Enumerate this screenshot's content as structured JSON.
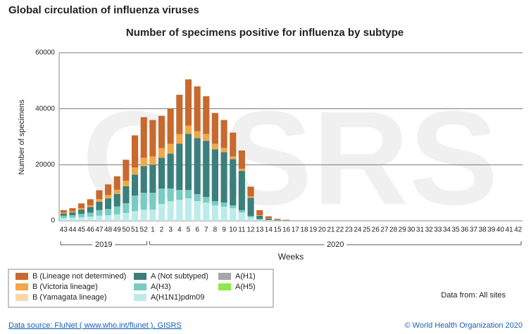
{
  "chart_data": {
    "type": "stacked_bar",
    "page_title": "Global circulation of influenza viruses",
    "title": "Number of specimens positive for influenza by subtype",
    "y_label": "Number of specimens",
    "x_label": "Weeks",
    "watermark": "GISRS",
    "years": [
      "2019",
      "2020"
    ],
    "categories": [
      "43",
      "44",
      "45",
      "46",
      "47",
      "48",
      "49",
      "50",
      "51",
      "52",
      "1",
      "2",
      "3",
      "4",
      "5",
      "6",
      "7",
      "8",
      "9",
      "10",
      "11",
      "12",
      "13",
      "14",
      "15",
      "16",
      "17",
      "18",
      "19",
      "20",
      "21",
      "22",
      "23",
      "24",
      "25",
      "26",
      "27",
      "28",
      "29",
      "30",
      "31",
      "32",
      "33",
      "34",
      "35",
      "36",
      "37",
      "38",
      "39",
      "40",
      "41",
      "42"
    ],
    "ylim": [
      0,
      60000
    ],
    "yticks": [
      0,
      20000,
      40000,
      60000
    ],
    "grid": true,
    "series": [
      {
        "name": "B (Lineage not determined)",
        "color": "#c8692e",
        "values": [
          900,
          1100,
          1700,
          2200,
          3200,
          3800,
          4800,
          7500,
          11500,
          14500,
          13000,
          11500,
          12500,
          14000,
          16500,
          16000,
          13500,
          11000,
          10000,
          8500,
          6500,
          3500,
          1800,
          700,
          300,
          150,
          30,
          30,
          30,
          30,
          30,
          30,
          30,
          30,
          30,
          30,
          30,
          30,
          30,
          30,
          30,
          30,
          30,
          30,
          30,
          30,
          30,
          30,
          30,
          30,
          30,
          30
        ]
      },
      {
        "name": "B (Victoria lineage)",
        "color": "#f0a848",
        "values": [
          300,
          400,
          500,
          600,
          900,
          1200,
          1500,
          2000,
          2500,
          3000,
          3000,
          3500,
          3500,
          3500,
          3000,
          2500,
          2500,
          2000,
          1500,
          1000,
          800,
          500,
          200,
          100,
          50,
          20,
          10,
          10,
          10,
          10,
          10,
          10,
          10,
          10,
          10,
          10,
          10,
          10,
          10,
          10,
          10,
          10,
          10,
          10,
          10,
          10,
          10,
          10,
          10,
          10,
          10,
          10
        ]
      },
      {
        "name": "B (Yamagata lineage)",
        "color": "#f8d8a8",
        "values": [
          0,
          0,
          0,
          0,
          0,
          0,
          0,
          0,
          0,
          0,
          0,
          0,
          0,
          0,
          0,
          0,
          0,
          0,
          0,
          0,
          0,
          0,
          0,
          0,
          0,
          0,
          0,
          0,
          0,
          0,
          0,
          0,
          0,
          0,
          0,
          0,
          0,
          0,
          0,
          0,
          0,
          0,
          0,
          0,
          0,
          0,
          0,
          0,
          0,
          0,
          0,
          0
        ]
      },
      {
        "name": "A (Not subtyped)",
        "color": "#3a7f7c",
        "values": [
          800,
          1000,
          1500,
          2000,
          3000,
          3800,
          4500,
          6000,
          7500,
          9500,
          10000,
          11000,
          12500,
          16500,
          20000,
          20000,
          20000,
          18500,
          18000,
          16500,
          14000,
          6500,
          1200,
          500,
          200,
          100,
          50,
          50,
          50,
          50,
          50,
          50,
          50,
          50,
          50,
          50,
          50,
          50,
          50,
          50,
          50,
          50,
          50,
          50,
          50,
          50,
          50,
          50,
          50,
          50,
          50,
          50
        ]
      },
      {
        "name": "A(H3)",
        "color": "#78ccc4",
        "values": [
          800,
          900,
          1200,
          1400,
          2000,
          2200,
          2800,
          3500,
          5500,
          6000,
          6000,
          5500,
          4500,
          3500,
          3000,
          2500,
          2000,
          1500,
          1500,
          1000,
          800,
          500,
          200,
          100,
          50,
          30,
          10,
          10,
          10,
          10,
          10,
          10,
          10,
          10,
          10,
          10,
          10,
          10,
          10,
          10,
          10,
          10,
          10,
          10,
          10,
          10,
          10,
          10,
          10,
          10,
          10,
          10
        ]
      },
      {
        "name": "A(H1N1)pdm09",
        "color": "#bcebea",
        "values": [
          1000,
          1100,
          1300,
          1500,
          1800,
          2000,
          2300,
          2800,
          3500,
          4000,
          4000,
          6000,
          7000,
          7500,
          8000,
          7000,
          6500,
          5500,
          5000,
          4500,
          3000,
          1200,
          400,
          200,
          100,
          50,
          20,
          20,
          20,
          20,
          20,
          20,
          20,
          20,
          20,
          20,
          20,
          20,
          20,
          20,
          20,
          20,
          20,
          20,
          20,
          20,
          20,
          20,
          20,
          20,
          20,
          20
        ]
      },
      {
        "name": "A(H1)",
        "color": "#a6a6a6",
        "values": [
          0,
          0,
          0,
          0,
          0,
          0,
          0,
          0,
          0,
          0,
          0,
          0,
          0,
          0,
          0,
          0,
          0,
          0,
          0,
          0,
          0,
          0,
          0,
          0,
          0,
          0,
          0,
          0,
          0,
          0,
          0,
          0,
          0,
          0,
          0,
          0,
          0,
          0,
          0,
          0,
          0,
          0,
          0,
          0,
          0,
          0,
          0,
          0,
          0,
          0,
          0,
          0
        ]
      },
      {
        "name": "A(H5)",
        "color": "#8ee84c",
        "values": [
          0,
          0,
          0,
          0,
          0,
          0,
          0,
          0,
          0,
          0,
          0,
          0,
          0,
          0,
          0,
          0,
          0,
          0,
          0,
          0,
          0,
          0,
          0,
          0,
          0,
          0,
          0,
          0,
          0,
          0,
          0,
          0,
          0,
          0,
          0,
          0,
          0,
          0,
          0,
          0,
          0,
          0,
          0,
          0,
          0,
          0,
          0,
          0,
          0,
          0,
          0,
          0
        ]
      }
    ],
    "note": "Data from: All sites",
    "source": "Data source: FluNet ( www.who.int/flunet ), GISRS",
    "copyright": "© World Health Organization 2020"
  }
}
